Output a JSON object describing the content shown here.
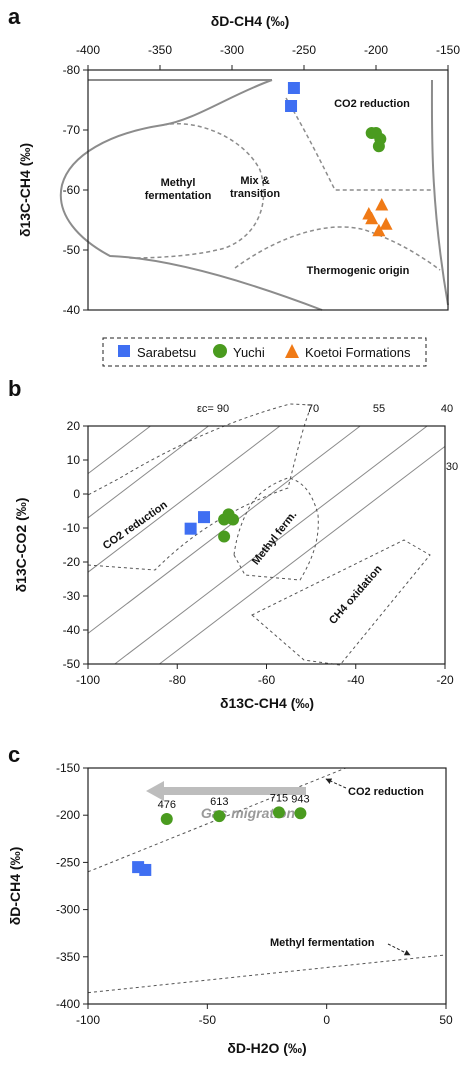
{
  "panels": {
    "a": "a",
    "b": "b",
    "c": "c"
  },
  "legend": {
    "items": [
      {
        "label": "Sarabetsu",
        "marker": "square",
        "color": "#3f6ff2"
      },
      {
        "label": "Yuchi",
        "marker": "circle",
        "color": "#4a9b1f"
      },
      {
        "label": "Koetoi Formations",
        "marker": "triangle",
        "color": "#f07a16"
      }
    ]
  },
  "chart_data": [
    {
      "panel": "a",
      "type": "scatter",
      "xlabel": "δD-CH4 (‰)",
      "ylabel": "δ13C-CH4 (‰)",
      "xlim": [
        -400,
        -150
      ],
      "ylim": [
        -80,
        -40
      ],
      "x_axis_position": "top",
      "y_inverted": true,
      "xticks": [
        "-400",
        "-350",
        "-300",
        "-250",
        "-200",
        "-150"
      ],
      "yticks": [
        "-80",
        "-70",
        "-60",
        "-50",
        "-40"
      ],
      "grid": false,
      "field_labels": [
        "CO2 reduction",
        "Methyl fermentation",
        "Mix & transition",
        "Thermogenic origin"
      ],
      "series": [
        {
          "name": "Sarabetsu",
          "points": [
            [
              -257,
              -77
            ],
            [
              -259,
              -74
            ]
          ]
        },
        {
          "name": "Yuchi",
          "points": [
            [
              -203,
              -69.5
            ],
            [
              -200,
              -69.5
            ],
            [
              -197,
              -68.5
            ],
            [
              -198,
              -67.3
            ]
          ]
        },
        {
          "name": "Koetoi Formations",
          "points": [
            [
              -196,
              -57.5
            ],
            [
              -205,
              -56
            ],
            [
              -203,
              -55.2
            ],
            [
              -193,
              -54.3
            ],
            [
              -198,
              -53.2
            ]
          ]
        }
      ]
    },
    {
      "panel": "b",
      "type": "scatter",
      "xlabel": "δ13C-CH4 (‰)",
      "ylabel": "δ13C-CO2 (‰)",
      "xlim": [
        -100,
        -20
      ],
      "ylim": [
        -50,
        20
      ],
      "xticks": [
        "-100",
        "-80",
        "-60",
        "-40",
        "-20"
      ],
      "yticks": [
        "20",
        "10",
        "0",
        "-10",
        "-20",
        "-30",
        "-40",
        "-50"
      ],
      "grid": false,
      "epsilon_label": "εc= 90",
      "epsilon_values": [
        "70",
        "55",
        "40",
        "30"
      ],
      "field_labels": [
        "CO2 reduction",
        "Methyl ferm.",
        "CH4 oxidation"
      ],
      "series": [
        {
          "name": "Sarabetsu",
          "points": [
            [
              -77,
              -10.2
            ],
            [
              -74,
              -6.8
            ]
          ]
        },
        {
          "name": "Yuchi",
          "points": [
            [
              -69.5,
              -7.5
            ],
            [
              -68.5,
              -6
            ],
            [
              -67.5,
              -7.5
            ],
            [
              -69.5,
              -12.5
            ]
          ]
        }
      ]
    },
    {
      "panel": "c",
      "type": "scatter",
      "xlabel": "δD-H2O (‰)",
      "ylabel": "δD-CH4 (‰)",
      "xlim": [
        -100,
        50
      ],
      "ylim": [
        -400,
        -150
      ],
      "xticks": [
        "-100",
        "-50",
        "0",
        "50"
      ],
      "yticks": [
        "-150",
        "-200",
        "-250",
        "-300",
        "-350",
        "-400"
      ],
      "grid": false,
      "line_labels": [
        "CO2 reduction",
        "Methyl fermentation"
      ],
      "arrow_label": "Gas migration",
      "series": [
        {
          "name": "Sarabetsu",
          "points": [
            [
              -79,
              -255
            ],
            [
              -76,
              -258
            ]
          ]
        },
        {
          "name": "Yuchi",
          "points": [
            [
              -67,
              -204,
              "476"
            ],
            [
              -45,
              -201,
              "613"
            ],
            [
              -20,
              -197,
              "715"
            ],
            [
              -11,
              -198,
              "943"
            ]
          ]
        }
      ]
    }
  ]
}
